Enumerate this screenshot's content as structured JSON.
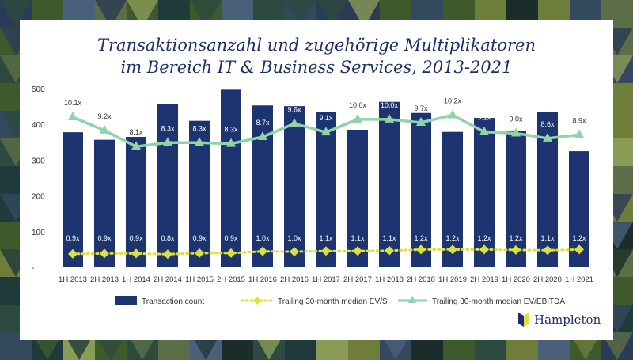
{
  "title_line1": "Transaktionsanzahl und zugehörige Multiplikatoren",
  "title_line2": "im Bereich IT & Business Services, 2013-2021",
  "logo_text": "Hampleton",
  "colors": {
    "bar": "#1d3470",
    "evs": "#d9e13a",
    "ebitda": "#8fd3a8",
    "title": "#1d2f6b"
  },
  "chart_data": {
    "type": "bar",
    "categories": [
      "1H 2013",
      "2H 2013",
      "1H 2014",
      "2H 2014",
      "1H 2015",
      "2H 2015",
      "1H 2016",
      "2H 2016",
      "1H 2017",
      "2H 2017",
      "1H 2018",
      "2H 2018",
      "1H 2019",
      "2H 2019",
      "1H 2020",
      "2H 2020",
      "1H 2021"
    ],
    "ylim": [
      0,
      500
    ],
    "yticks": [
      "-",
      "100",
      "200",
      "300",
      "400",
      "500"
    ],
    "series": [
      {
        "name": "Transaction count",
        "kind": "bar",
        "values": [
          378,
          357,
          365,
          457,
          410,
          497,
          453,
          451,
          435,
          385,
          463,
          432,
          379,
          418,
          381,
          434,
          325
        ]
      },
      {
        "name": "Trailing 30-month median EV/S",
        "kind": "line",
        "values": [
          38,
          39,
          39,
          37,
          40,
          40,
          45,
          44,
          46,
          46,
          47,
          50,
          50,
          50,
          49,
          48,
          50
        ],
        "labels": [
          "0.9x",
          "0.9x",
          "0.9x",
          "0.8x",
          "0.9x",
          "0.9x",
          "1.0x",
          "1.0x",
          "1.1x",
          "1.1x",
          "1.1x",
          "1.2x",
          "1.2x",
          "1.2x",
          "1.2x",
          "1.1x",
          "1.2x"
        ]
      },
      {
        "name": "Trailing 30-month median EV/EBITDA",
        "kind": "line",
        "values": [
          420,
          383,
          338,
          349,
          349,
          346,
          365,
          402,
          378,
          414,
          414,
          405,
          426,
          379,
          375,
          361,
          371
        ],
        "labels": [
          "10.1x",
          "9.2x",
          "8.1x",
          "8.3x",
          "8.3x",
          "8.3x",
          "8.7x",
          "9.6x",
          "9.1x",
          "10.0x",
          "10.0x",
          "9.7x",
          "10.2x",
          "9.1x",
          "9.0x",
          "8.6x",
          "8.9x"
        ]
      }
    ],
    "legend_position": "bottom",
    "grid": false
  }
}
